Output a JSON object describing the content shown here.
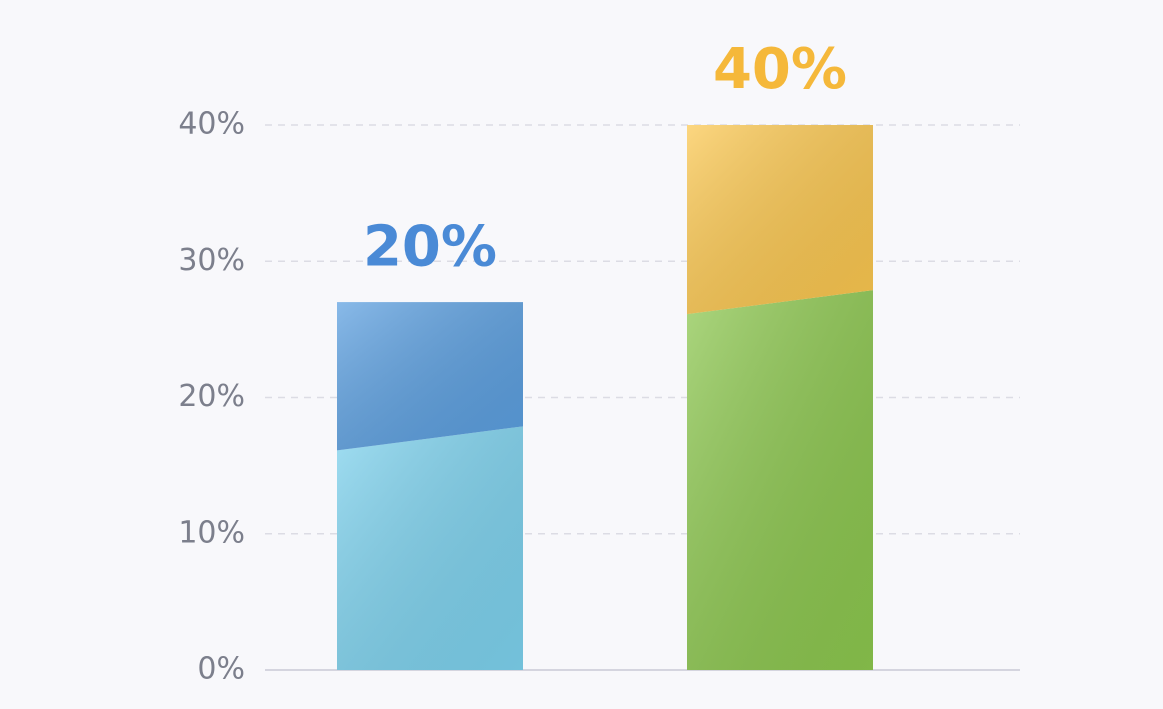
{
  "chart_data": {
    "type": "stacked_bar",
    "categories": [
      null,
      null
    ],
    "series": [
      {
        "colors": [
          "#7dd2ee",
          "#8cc74e"
        ],
        "values": [
          17,
          27
        ]
      },
      {
        "colors": [
          "#5b9fe0",
          "#fbc74f"
        ],
        "values": [
          10,
          13
        ]
      }
    ],
    "annotations": [
      {
        "text": "20%",
        "color": "#4a8ad6"
      },
      {
        "text": "40%",
        "color": "#f5b83a"
      }
    ],
    "ylim": [
      0,
      40
    ],
    "yticks": [
      {
        "value": 0,
        "label": "0%"
      },
      {
        "value": 10,
        "label": "10%"
      },
      {
        "value": 20,
        "label": "20%"
      },
      {
        "value": 30,
        "label": "30%"
      },
      {
        "value": 40,
        "label": "40%"
      }
    ],
    "grid": true
  }
}
